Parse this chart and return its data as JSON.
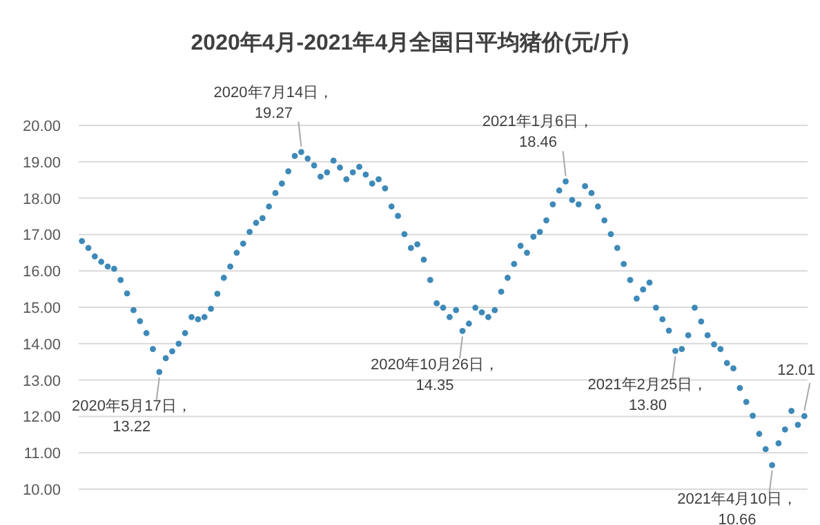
{
  "chart_data": {
    "type": "scatter",
    "title": "2020年4月-2021年4月全国日平均猪价(元/斤)",
    "categories": [
      null,
      null,
      null,
      null,
      null,
      null,
      null,
      null,
      null,
      null,
      null,
      null,
      null,
      null,
      null,
      null,
      null,
      null,
      null,
      null,
      null,
      null,
      null,
      null,
      null,
      null,
      null,
      null,
      null,
      null,
      null,
      null,
      null,
      null,
      null,
      null,
      null,
      null,
      null,
      null,
      null,
      null,
      null,
      null,
      null,
      null,
      null,
      null,
      null,
      null,
      null,
      null,
      null,
      null,
      null,
      null,
      null,
      null,
      null,
      null,
      null,
      null,
      null,
      null,
      null,
      null,
      null,
      null,
      null,
      null,
      null,
      null,
      null,
      null,
      null,
      null,
      null,
      null,
      null,
      null,
      null,
      null,
      null,
      null,
      null,
      null,
      null,
      null,
      null,
      null,
      null,
      null,
      null,
      null,
      null,
      null,
      null,
      null,
      null,
      null,
      null,
      null,
      null,
      null,
      null,
      null,
      null,
      null,
      null,
      null,
      null,
      null,
      null
    ],
    "values": [
      16.82,
      16.63,
      16.4,
      16.25,
      16.12,
      16.06,
      15.75,
      15.38,
      14.92,
      14.62,
      14.29,
      13.85,
      13.22,
      13.6,
      13.79,
      14.0,
      14.29,
      14.73,
      14.67,
      14.73,
      14.96,
      15.37,
      15.81,
      16.12,
      16.5,
      16.75,
      17.07,
      17.32,
      17.45,
      17.77,
      18.14,
      18.4,
      18.74,
      19.16,
      19.27,
      19.09,
      18.9,
      18.59,
      18.71,
      19.03,
      18.84,
      18.52,
      18.71,
      18.86,
      18.65,
      18.4,
      18.52,
      18.27,
      17.77,
      17.51,
      17.01,
      16.63,
      16.73,
      16.31,
      15.75,
      15.11,
      14.99,
      14.73,
      14.92,
      14.35,
      14.55,
      14.99,
      14.86,
      14.73,
      14.92,
      15.43,
      15.81,
      16.19,
      16.69,
      16.5,
      16.94,
      17.07,
      17.39,
      17.83,
      18.21,
      18.46,
      17.95,
      17.83,
      18.33,
      18.14,
      17.77,
      17.39,
      17.01,
      16.63,
      16.19,
      15.75,
      15.24,
      15.49,
      15.68,
      14.99,
      14.67,
      14.36,
      13.8,
      13.85,
      14.23,
      14.99,
      14.61,
      14.23,
      13.98,
      13.85,
      13.47,
      13.32,
      12.78,
      12.4,
      12.02,
      11.52,
      11.1,
      10.66,
      11.26,
      11.64,
      12.15,
      11.77,
      12.01
    ],
    "color": "#3d89b8",
    "marker": "circle",
    "grid": "y",
    "ylim": [
      10,
      20
    ],
    "yticks": [
      {
        "value": 10,
        "label": "10.00"
      },
      {
        "value": 11,
        "label": "11.00"
      },
      {
        "value": 12,
        "label": "12.00"
      },
      {
        "value": 13,
        "label": "13.00"
      },
      {
        "value": 14,
        "label": "14.00"
      },
      {
        "value": 15,
        "label": "15.00"
      },
      {
        "value": 16,
        "label": "16.00"
      },
      {
        "value": 17,
        "label": "17.00"
      },
      {
        "value": 18,
        "label": "18.00"
      },
      {
        "value": 19,
        "label": "19.00"
      },
      {
        "value": 20,
        "label": "20.00"
      }
    ],
    "annotations": [
      "2020年5月17日，\n13.22",
      "2020年7月14日，\n19.27",
      "2020年10月26日，\n14.35",
      "2021年1月6日，\n18.46",
      "2021年2月25日，\n13.80",
      "2021年4月10日，\n10.66",
      "12.01"
    ]
  }
}
